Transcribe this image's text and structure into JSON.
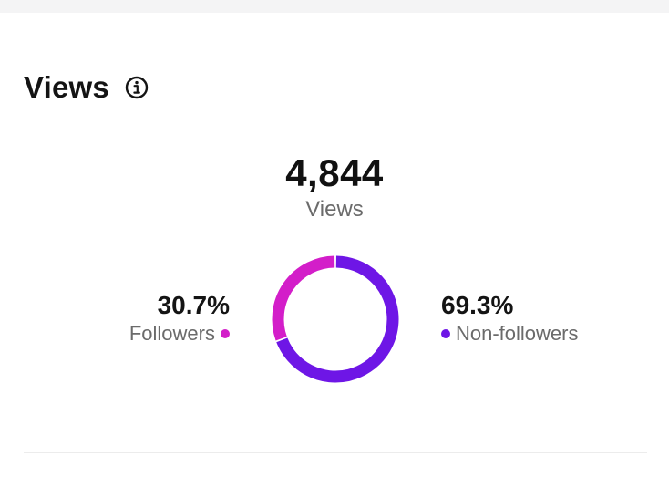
{
  "header": {
    "title": "Views",
    "info_icon": "info-icon"
  },
  "summary": {
    "total_value": "4,844",
    "total_label": "Views"
  },
  "breakdown": [
    {
      "label": "Followers",
      "percent_text": "30.7%",
      "percent": 30.7,
      "color": "#d31ec9"
    },
    {
      "label": "Non-followers",
      "percent_text": "69.3%",
      "percent": 69.3,
      "color": "#6e16e6"
    }
  ]
}
